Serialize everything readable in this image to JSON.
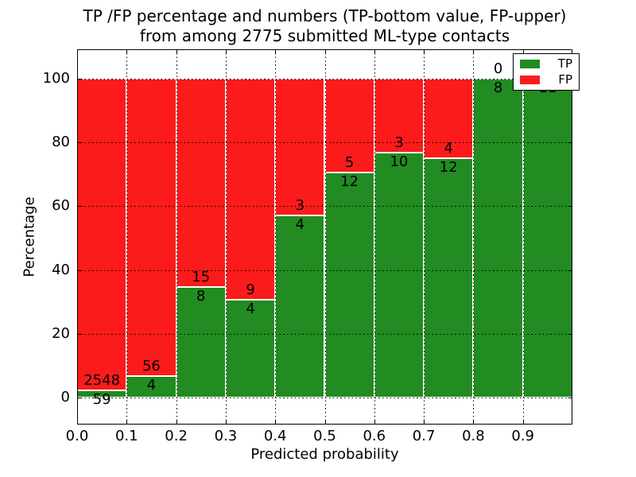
{
  "chart_data": {
    "type": "bar",
    "stacked": true,
    "normalized_to_percent": true,
    "title_line1": "TP /FP percentage and numbers (TP-bottom value, FP-upper)",
    "title_line2": "from among 2775 submitted ML-type contacts",
    "xlabel": "Predicted probability",
    "ylabel": "Percentage",
    "total_contacts": 2775,
    "x_tick_labels": [
      "0.0",
      "0.1",
      "0.2",
      "0.3",
      "0.4",
      "0.5",
      "0.6",
      "0.7",
      "0.8",
      "0.9"
    ],
    "y_tick_labels": [
      "0",
      "20",
      "40",
      "60",
      "80",
      "100"
    ],
    "y_tick_values": [
      0,
      20,
      40,
      60,
      80,
      100
    ],
    "xlim": [
      0.0,
      1.0
    ],
    "ylim": [
      -8.5,
      109.3
    ],
    "bin_width": 0.1,
    "grid": "dotted-black-both-axes",
    "bar_edge_color": "#ffffff",
    "bins": [
      {
        "range": "0.0-0.1",
        "tp": 59,
        "fp": 2548,
        "tp_pct": 2.3
      },
      {
        "range": "0.1-0.2",
        "tp": 4,
        "fp": 56,
        "tp_pct": 6.7
      },
      {
        "range": "0.2-0.3",
        "tp": 8,
        "fp": 15,
        "tp_pct": 34.8
      },
      {
        "range": "0.3-0.4",
        "tp": 4,
        "fp": 9,
        "tp_pct": 30.8
      },
      {
        "range": "0.4-0.5",
        "tp": 4,
        "fp": 3,
        "tp_pct": 57.1
      },
      {
        "range": "0.5-0.6",
        "tp": 12,
        "fp": 5,
        "tp_pct": 70.6
      },
      {
        "range": "0.6-0.7",
        "tp": 10,
        "fp": 3,
        "tp_pct": 76.9
      },
      {
        "range": "0.7-0.8",
        "tp": 12,
        "fp": 4,
        "tp_pct": 75.0
      },
      {
        "range": "0.8-0.9",
        "tp": 8,
        "fp": 0,
        "tp_pct": 100.0
      },
      {
        "range": "0.9-1.0",
        "tp": 11,
        "fp": 0,
        "tp_pct": 100.0
      }
    ],
    "legend_position": "upper right",
    "legend": [
      {
        "label": "TP",
        "color": "#228b22"
      },
      {
        "label": "FP",
        "color": "#fc1b1b"
      }
    ],
    "colors": {
      "tp": "#228b22",
      "fp": "#fc1b1b",
      "grid": "#000000",
      "text": "#000000"
    }
  }
}
